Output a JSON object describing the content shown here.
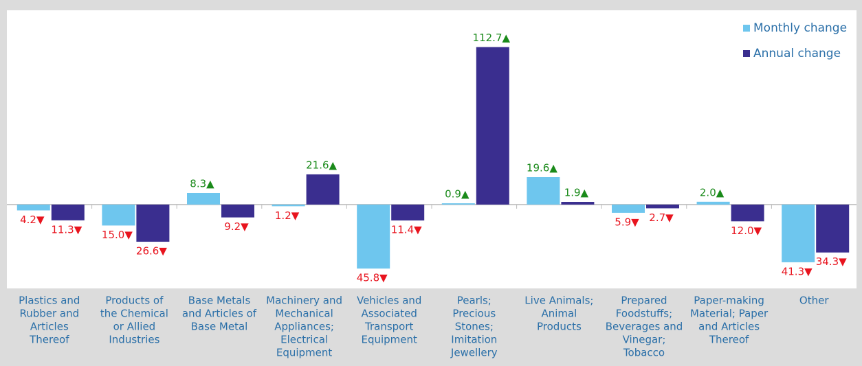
{
  "chart_data": {
    "type": "bar",
    "categories": [
      [
        "Plastics and",
        "Rubber and",
        "Articles",
        "Thereof"
      ],
      [
        "Products of",
        "the Chemical",
        "or Allied",
        "Industries"
      ],
      [
        "Base Metals",
        "and Articles of",
        "Base Metal"
      ],
      [
        "Machinery and",
        "Mechanical",
        "Appliances;",
        "Electrical",
        "Equipment"
      ],
      [
        "Vehicles and",
        "Associated",
        "Transport",
        "Equipment"
      ],
      [
        "Pearls;",
        "Precious",
        "Stones;",
        "Imitation",
        "Jewellery"
      ],
      [
        "Live Animals;",
        "Animal",
        "Products"
      ],
      [
        "Prepared",
        "Foodstuffs;",
        "Beverages and",
        "Vinegar;",
        "Tobacco"
      ],
      [
        "Paper-making",
        "Material; Paper",
        "and Articles",
        "Thereof"
      ],
      [
        "Other"
      ]
    ],
    "series": [
      {
        "name": "Monthly change",
        "color": "#6ec6ee",
        "values": [
          -4.2,
          -15.0,
          8.3,
          -1.2,
          -45.8,
          0.9,
          19.6,
          -5.9,
          2.0,
          -41.3
        ],
        "value_labels": [
          "4.2▼",
          "15.0▼",
          "8.3▲",
          "1.2▼",
          "45.8▼",
          "0.9▲",
          "19.6▲",
          "5.9▼",
          "2.0▲",
          "41.3▼"
        ]
      },
      {
        "name": "Annual change",
        "color": "#3a2e8f",
        "values": [
          -11.3,
          -26.6,
          -9.2,
          21.6,
          -11.4,
          112.7,
          1.9,
          -2.7,
          -12.0,
          -34.3
        ],
        "value_labels": [
          "11.3▼",
          "26.6▼",
          "9.2▼",
          "21.6▲",
          "11.4▼",
          "112.7▲",
          "1.9▲",
          "2.7▼",
          "12.0▼",
          "34.3▼"
        ]
      }
    ],
    "ylim": [
      -60,
      139
    ],
    "positive_label_color": "#1a8a1a",
    "negative_label_color": "#e8141e",
    "legend": "top-right"
  }
}
